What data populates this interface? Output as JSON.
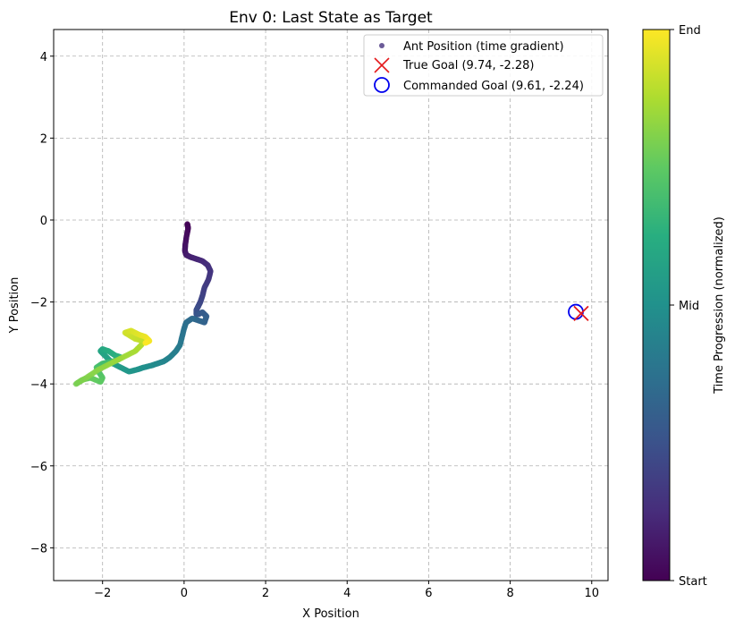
{
  "chart_data": {
    "type": "scatter",
    "title": "Env 0: Last State as Target",
    "xlabel": "X Position",
    "ylabel": "Y Position",
    "xlim": [
      -3.2,
      10.4
    ],
    "ylim": [
      -8.8,
      4.65
    ],
    "xticks": [
      -2,
      0,
      2,
      4,
      6,
      8,
      10
    ],
    "yticks": [
      -8,
      -6,
      -4,
      -2,
      0,
      2,
      4
    ],
    "xtick_labels": [
      "−2",
      "0",
      "2",
      "4",
      "6",
      "8",
      "10"
    ],
    "ytick_labels": [
      "−8",
      "−6",
      "−4",
      "−2",
      "0",
      "2",
      "4"
    ],
    "grid": true,
    "legend_position": "top-right",
    "series": [
      {
        "name": "Ant Position (time gradient)",
        "kind": "trajectory",
        "x": [
          0.08,
          0.1,
          0.06,
          0.03,
          0.02,
          0.05,
          0.15,
          0.3,
          0.45,
          0.58,
          0.65,
          0.6,
          0.5,
          0.45,
          0.4,
          0.35,
          0.3,
          0.3,
          0.35,
          0.45,
          0.55,
          0.5,
          0.35,
          0.2,
          0.05,
          0.0,
          -0.05,
          -0.1,
          -0.2,
          -0.35,
          -0.5,
          -0.65,
          -0.8,
          -1.0,
          -1.15,
          -1.35,
          -1.55,
          -1.75,
          -1.9,
          -2.05,
          -2.0,
          -1.85,
          -1.7,
          -1.55,
          -1.6,
          -1.75,
          -2.0,
          -2.15,
          -2.1,
          -2.0,
          -2.05,
          -2.3,
          -2.5,
          -2.65,
          -2.4,
          -2.1,
          -1.8,
          -1.5,
          -1.2,
          -1.05,
          -1.0,
          -1.2,
          -1.45,
          -1.3,
          -1.1,
          -0.95,
          -0.85,
          -0.95
        ],
        "y": [
          -0.1,
          -0.2,
          -0.4,
          -0.6,
          -0.75,
          -0.85,
          -0.9,
          -0.95,
          -1.0,
          -1.1,
          -1.25,
          -1.45,
          -1.65,
          -1.85,
          -2.0,
          -2.1,
          -2.2,
          -2.3,
          -2.3,
          -2.25,
          -2.35,
          -2.5,
          -2.45,
          -2.4,
          -2.5,
          -2.65,
          -2.85,
          -3.05,
          -3.2,
          -3.35,
          -3.45,
          -3.5,
          -3.55,
          -3.6,
          -3.65,
          -3.7,
          -3.6,
          -3.5,
          -3.35,
          -3.2,
          -3.15,
          -3.2,
          -3.3,
          -3.35,
          -3.4,
          -3.45,
          -3.5,
          -3.6,
          -3.7,
          -3.85,
          -3.95,
          -3.85,
          -3.9,
          -4.0,
          -3.85,
          -3.65,
          -3.5,
          -3.35,
          -3.2,
          -3.05,
          -2.95,
          -2.9,
          -2.75,
          -2.7,
          -2.8,
          -2.85,
          -2.95,
          -3.0
        ]
      },
      {
        "name": "True Goal (9.74, -2.28)",
        "kind": "x-marker",
        "color": "#e41a1c",
        "x": [
          9.74
        ],
        "y": [
          -2.28
        ]
      },
      {
        "name": "Commanded Goal (9.61, -2.24)",
        "kind": "hollow-circle",
        "color": "#0000ee",
        "x": [
          9.61
        ],
        "y": [
          -2.24
        ]
      }
    ],
    "colorbar": {
      "label": "Time Progression (normalized)",
      "colormap": "viridis",
      "ticks": [
        "Start",
        "Mid",
        "End"
      ]
    }
  }
}
